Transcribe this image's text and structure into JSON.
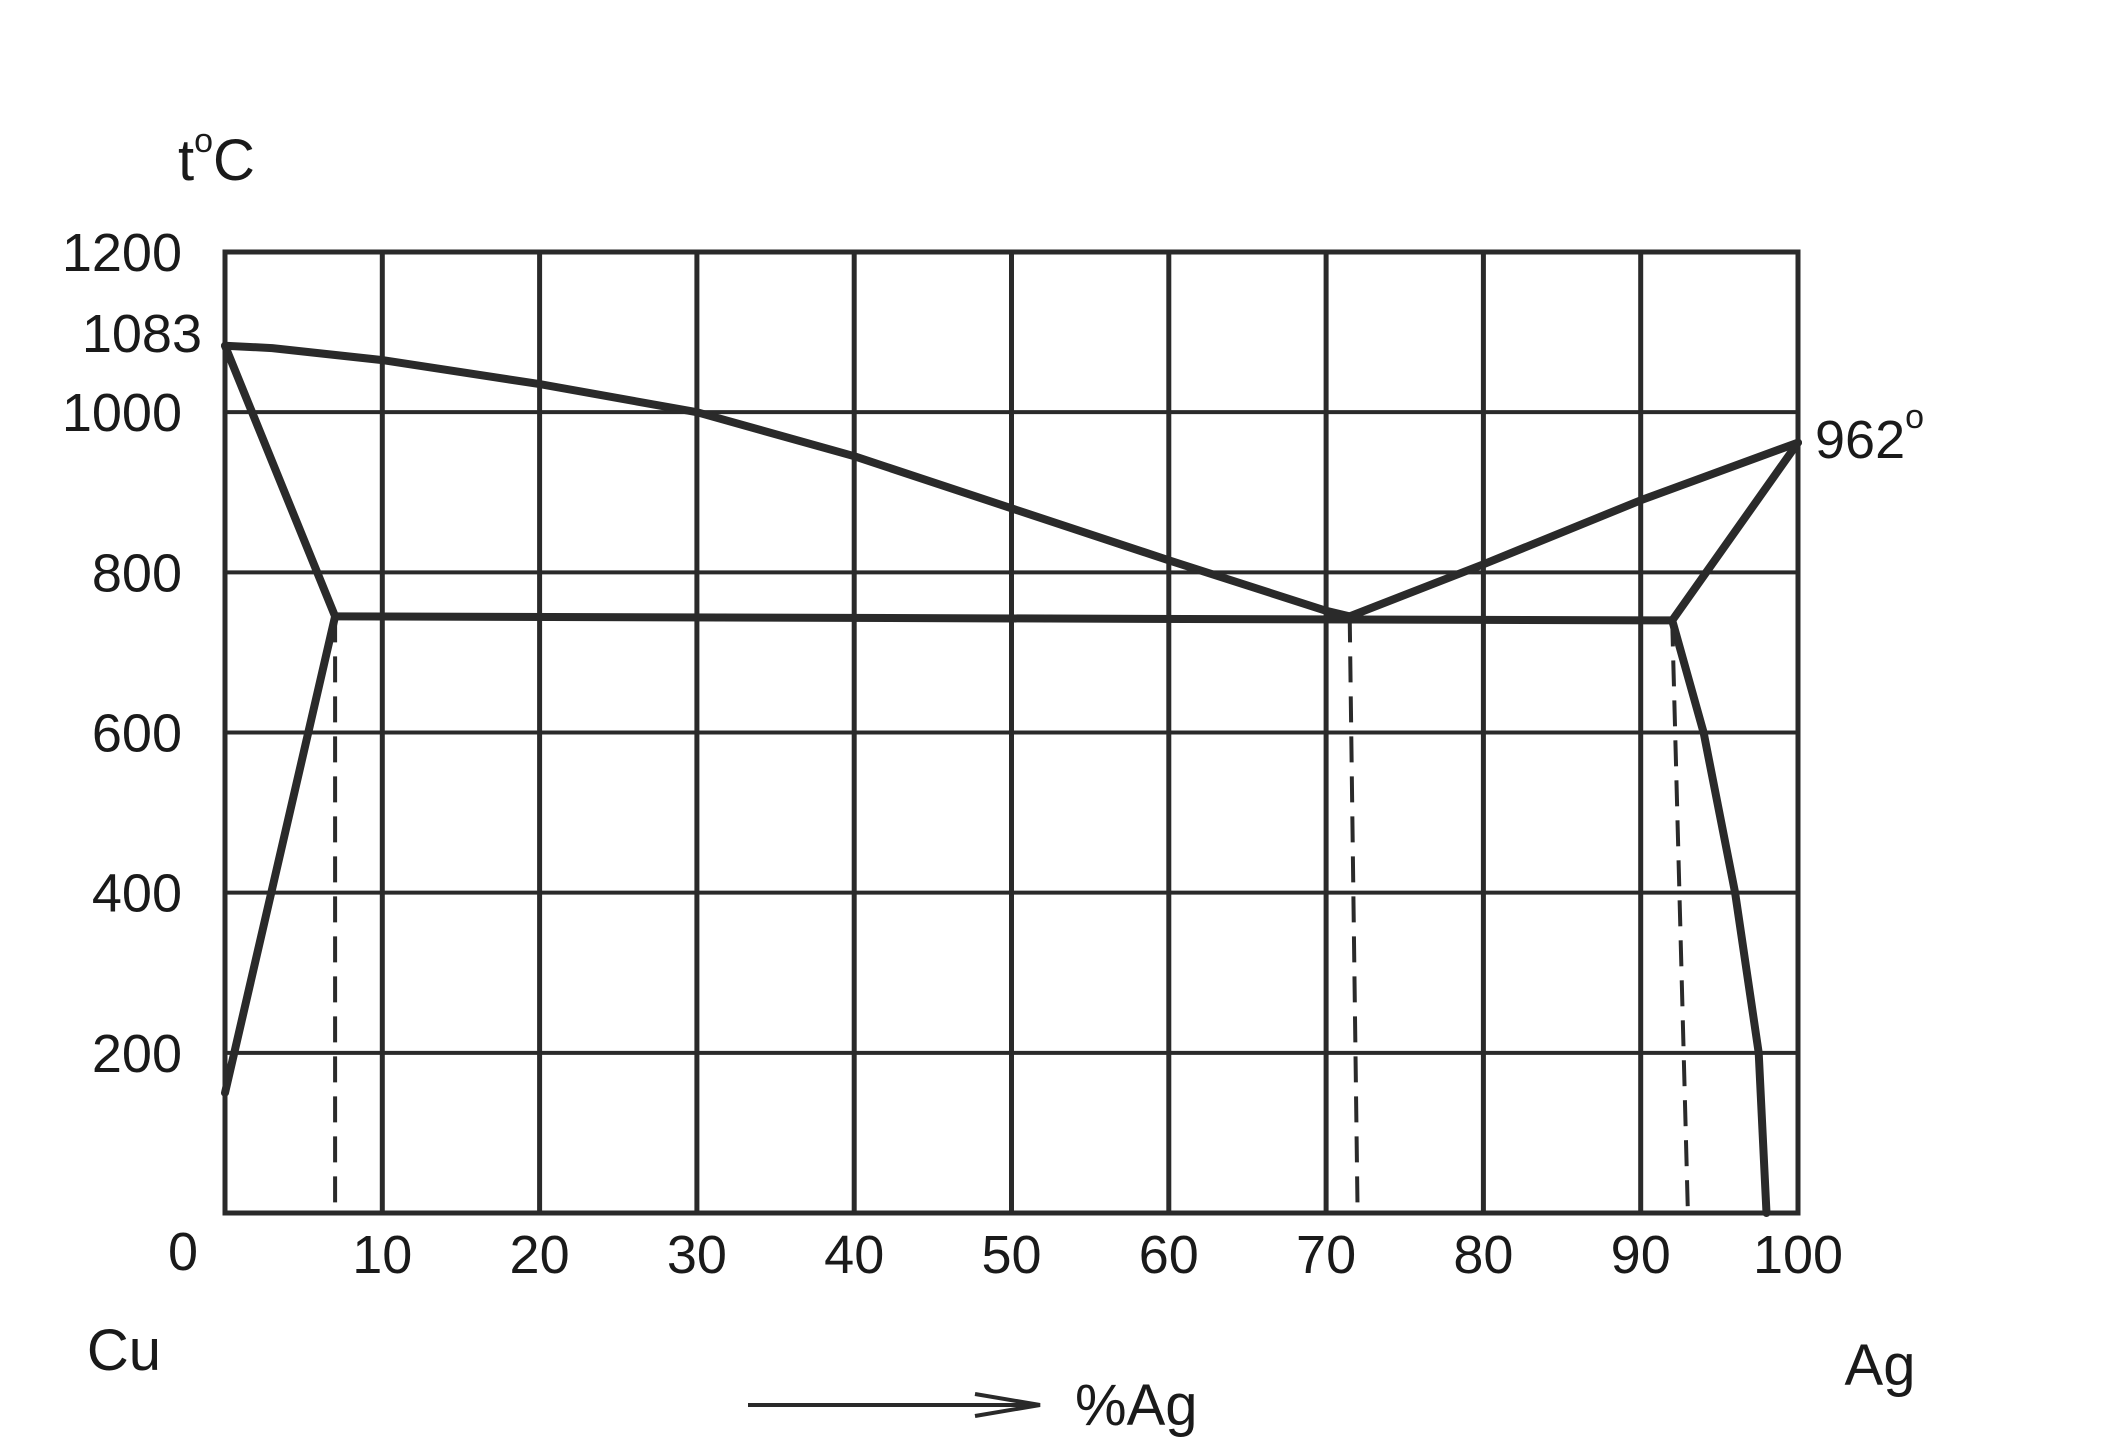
{
  "chart_data": {
    "type": "line",
    "title": "",
    "ylabel_var": "t",
    "ylabel_sup": "o",
    "ylabel_unit": "C",
    "xlabel": "%Ag",
    "left_component": "Cu",
    "right_component": "Ag",
    "xlim": [
      0,
      100
    ],
    "ylim": [
      0,
      1200
    ],
    "grid": true,
    "x_ticks": [
      "10",
      "20",
      "30",
      "40",
      "50",
      "60",
      "70",
      "80",
      "90",
      "100"
    ],
    "x_tick_values": [
      10,
      20,
      30,
      40,
      50,
      60,
      70,
      80,
      90,
      100
    ],
    "y_ticks": [
      "200",
      "400",
      "600",
      "800",
      "1000",
      "1200"
    ],
    "y_tick_values": [
      200,
      400,
      600,
      800,
      1000,
      1200
    ],
    "origin_label": "0",
    "annotations": {
      "cu_melting_label": "1083",
      "cu_melting_value": 1083,
      "ag_melting_label": "962",
      "ag_melting_sup": "o",
      "ag_melting_value": 962
    },
    "series": [
      {
        "key": "liquidus_cu",
        "style": "solid",
        "points": [
          [
            0,
            1083
          ],
          [
            3,
            1080
          ],
          [
            10,
            1065
          ],
          [
            20,
            1035
          ],
          [
            30,
            1000
          ],
          [
            40,
            945
          ],
          [
            50,
            880
          ],
          [
            60,
            815
          ],
          [
            70,
            752
          ],
          [
            71.5,
            745
          ]
        ]
      },
      {
        "key": "liquidus_ag",
        "style": "solid",
        "points": [
          [
            71.5,
            745
          ],
          [
            80,
            810
          ],
          [
            90,
            890
          ],
          [
            100,
            962
          ]
        ]
      },
      {
        "key": "solidus_cu",
        "style": "solid",
        "points": [
          [
            0,
            1083
          ],
          [
            7,
            745
          ]
        ]
      },
      {
        "key": "solidus_ag",
        "style": "solid",
        "points": [
          [
            100,
            962
          ],
          [
            92,
            740
          ]
        ]
      },
      {
        "key": "eutectic_line",
        "style": "solid",
        "points": [
          [
            7,
            745
          ],
          [
            92,
            740
          ]
        ]
      },
      {
        "key": "solvus_cu",
        "style": "solid",
        "points": [
          [
            7,
            745
          ],
          [
            0,
            150
          ]
        ]
      },
      {
        "key": "solvus_ag",
        "style": "solid",
        "points": [
          [
            92,
            740
          ],
          [
            94,
            600
          ],
          [
            96,
            400
          ],
          [
            97.5,
            200
          ],
          [
            98,
            0
          ]
        ]
      },
      {
        "key": "drop_cu",
        "style": "dashed",
        "points": [
          [
            7,
            745
          ],
          [
            7,
            0
          ]
        ]
      },
      {
        "key": "drop_eutectic",
        "style": "dashed",
        "points": [
          [
            71.5,
            745
          ],
          [
            72,
            0
          ]
        ]
      },
      {
        "key": "drop_ag",
        "style": "dashed",
        "points": [
          [
            92,
            740
          ],
          [
            93,
            0
          ]
        ]
      }
    ]
  }
}
